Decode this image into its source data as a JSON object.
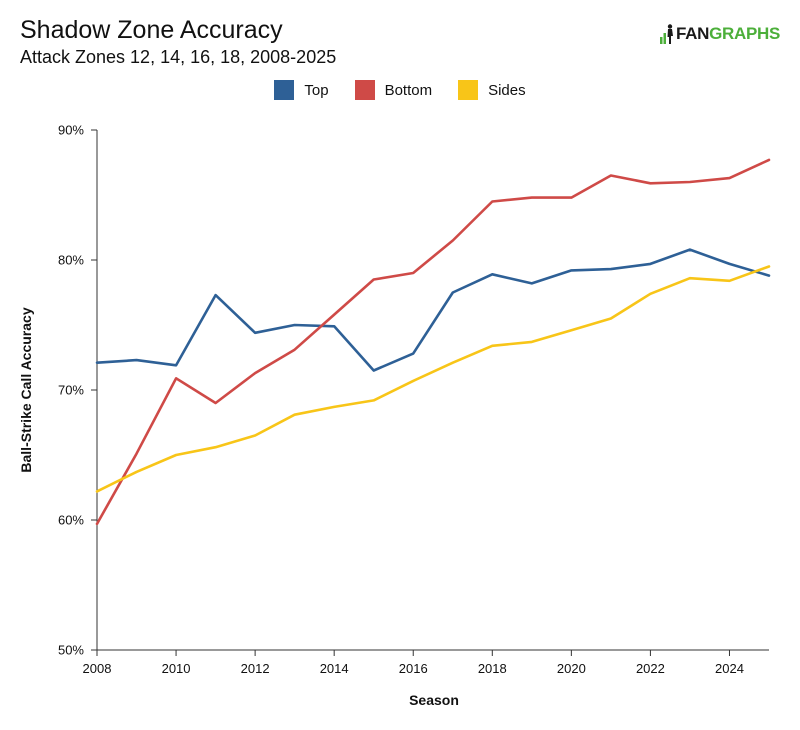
{
  "header": {
    "title": "Shadow Zone Accuracy",
    "subtitle": "Attack Zones 12, 14, 16, 18, 2008-2025"
  },
  "logo": {
    "text_fan": "FAN",
    "text_graphs": "GRAPHS",
    "icon": "fangraphs-logo-icon"
  },
  "colors": {
    "top": "#2e6096",
    "bottom": "#cf4a47",
    "sides": "#f8c518",
    "axis": "#333333"
  },
  "chart_data": {
    "type": "line",
    "title": "Shadow Zone Accuracy",
    "subtitle": "Attack Zones 12, 14, 16, 18, 2008-2025",
    "xlabel": "Season",
    "ylabel": "Ball-Strike Call Accuracy",
    "x": [
      2008,
      2009,
      2010,
      2011,
      2012,
      2013,
      2014,
      2015,
      2016,
      2017,
      2018,
      2019,
      2020,
      2021,
      2022,
      2023,
      2024,
      2025
    ],
    "xlim": [
      2008,
      2025
    ],
    "ylim": [
      50,
      90
    ],
    "x_ticks": [
      "2008",
      "2010",
      "2012",
      "2014",
      "2016",
      "2018",
      "2020",
      "2022",
      "2024"
    ],
    "y_ticks": [
      "50%",
      "60%",
      "70%",
      "80%",
      "90%"
    ],
    "y_tick_values": [
      50,
      60,
      70,
      80,
      90
    ],
    "x_tick_values": [
      2008,
      2010,
      2012,
      2014,
      2016,
      2018,
      2020,
      2022,
      2024
    ],
    "grid": false,
    "legend_position": "top-center",
    "series": [
      {
        "name": "Top",
        "color": "#2e6096",
        "values": [
          72.1,
          72.3,
          71.9,
          77.3,
          74.4,
          75.0,
          74.9,
          71.5,
          72.8,
          77.5,
          78.9,
          78.2,
          79.2,
          79.3,
          79.7,
          80.8,
          79.7,
          78.8
        ]
      },
      {
        "name": "Bottom",
        "color": "#cf4a47",
        "values": [
          59.7,
          65.1,
          70.9,
          69.0,
          71.3,
          73.1,
          75.8,
          78.5,
          79.0,
          81.5,
          84.5,
          84.8,
          84.8,
          86.5,
          85.9,
          86.0,
          86.3,
          87.7
        ]
      },
      {
        "name": "Sides",
        "color": "#f8c518",
        "values": [
          62.2,
          63.7,
          65.0,
          65.6,
          66.5,
          68.1,
          68.7,
          69.2,
          70.7,
          72.1,
          73.4,
          73.7,
          74.6,
          75.5,
          77.4,
          78.6,
          78.4,
          79.5
        ]
      }
    ]
  }
}
